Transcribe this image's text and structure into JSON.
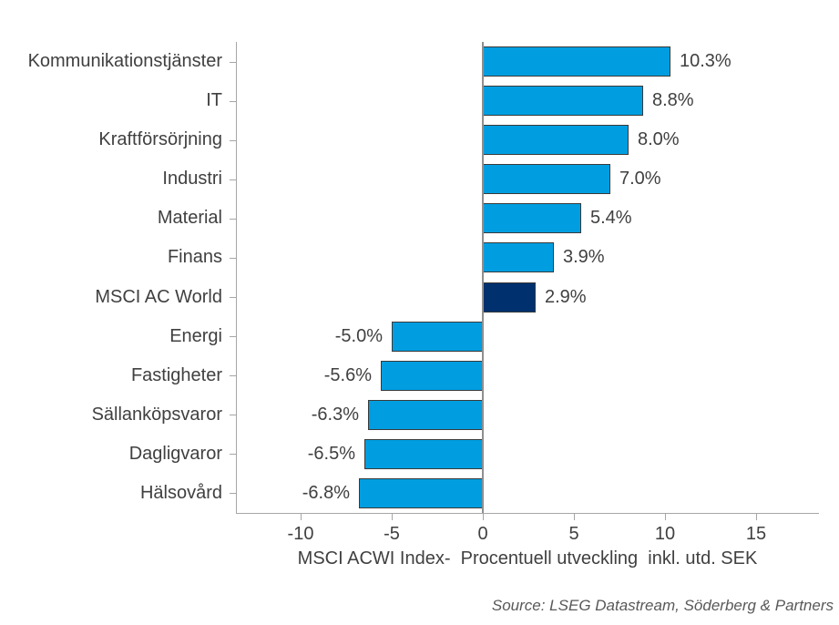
{
  "chart_data": {
    "type": "bar",
    "orientation": "horizontal",
    "categories": [
      "Kommunikationstjänster",
      "IT",
      "Kraftförsörjning",
      "Industri",
      "Material",
      "Finans",
      "MSCI AC World",
      "Energi",
      "Fastigheter",
      "Sällanköpsvaror",
      "Dagligvaror",
      "Hälsovård"
    ],
    "values": [
      10.3,
      8.8,
      8.0,
      7.0,
      5.4,
      3.9,
      2.9,
      -5.0,
      -5.6,
      -6.3,
      -6.5,
      -6.8
    ],
    "value_labels": [
      "10.3%",
      "8.8%",
      "8.0%",
      "7.0%",
      "5.4%",
      "3.9%",
      "2.9%",
      "-5.0%",
      "-5.6%",
      "-6.3%",
      "-6.5%",
      "-6.8%"
    ],
    "highlight_category": "MSCI AC World",
    "x_ticks": [
      -10,
      -5,
      0,
      5,
      10,
      15
    ],
    "xlim": [
      -13.55,
      18.45
    ],
    "grid": "off",
    "legend": "none",
    "xlabel": "MSCI ACWI Index-  Procentuell utveckling  inkl. utd. SEK",
    "source": "Source: LSEG Datastream, Söderberg & Partners",
    "colors": {
      "bar": "#009ee0",
      "highlight_bar": "#00306e",
      "bar_outline": "#3a3a3a",
      "axis": "#a6a6a6",
      "zero_line": "#8f8f8f",
      "text": "#404040",
      "source_text": "#595959"
    }
  }
}
